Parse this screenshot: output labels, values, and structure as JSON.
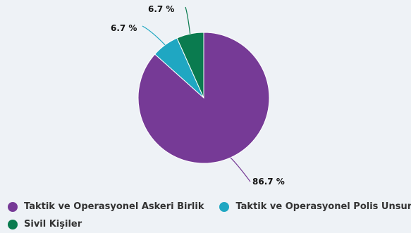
{
  "chart_data": {
    "type": "pie",
    "categories": [
      "Taktik ve Operasyonel Askeri Birlik",
      "Taktik ve Operasyonel Polis Unsuru",
      "Sivil Kişiler"
    ],
    "values": [
      86.7,
      6.7,
      6.7
    ],
    "data_labels": [
      "86.7 %",
      "6.7 %",
      "6.7 %"
    ],
    "colors": [
      "#763a96",
      "#1fa7c2",
      "#0a7b4f"
    ],
    "legend_position": "bottom-left"
  }
}
